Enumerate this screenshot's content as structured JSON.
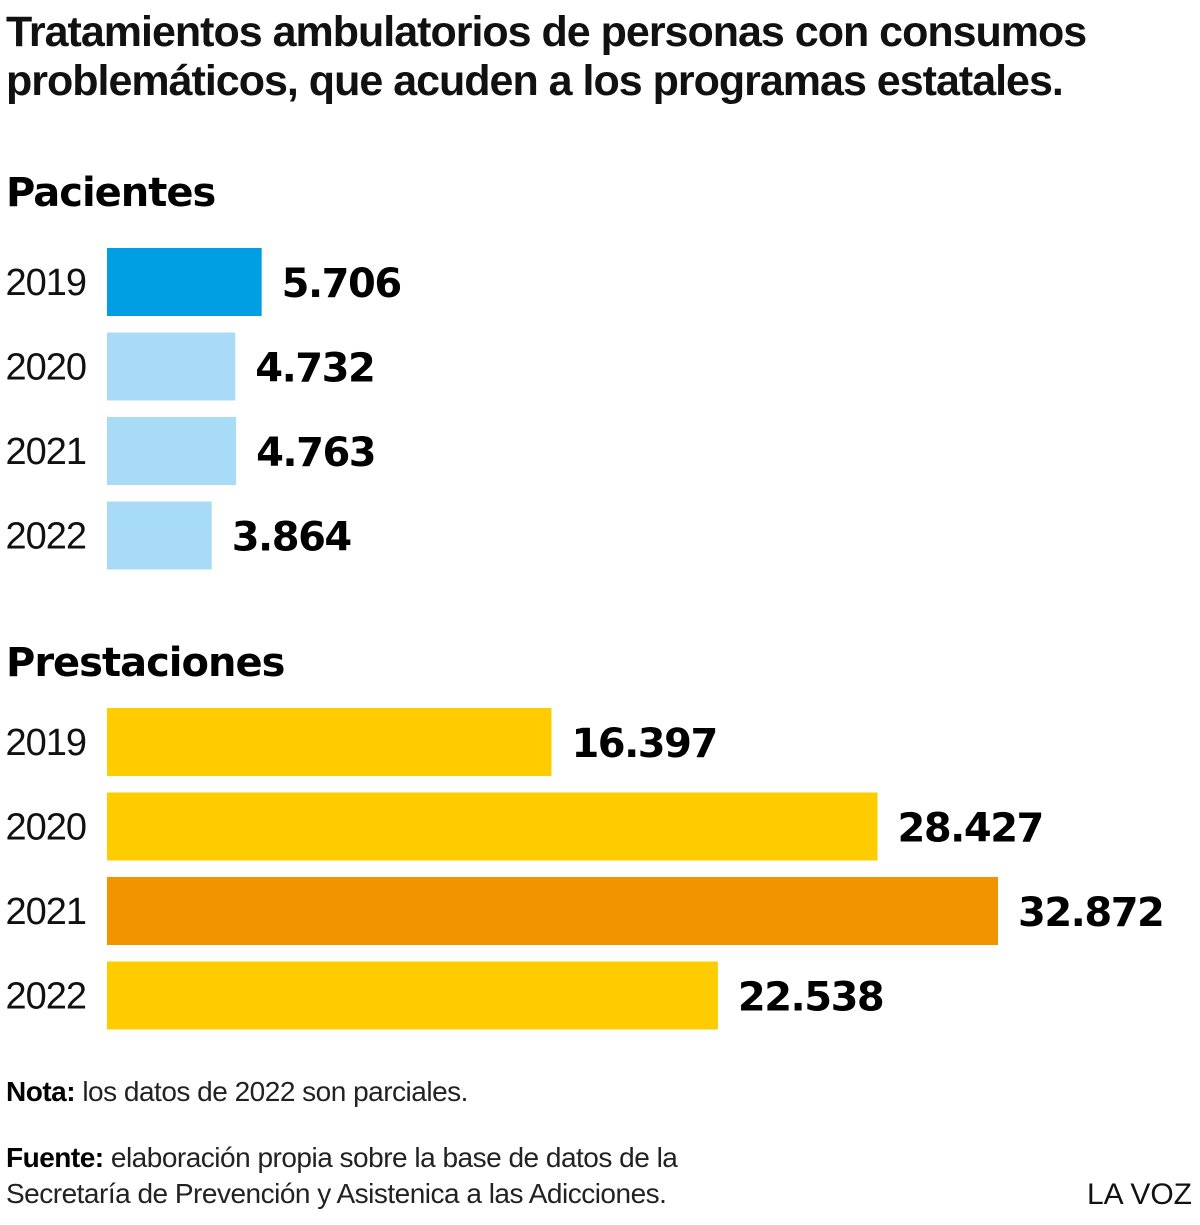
{
  "title": "Tratamientos ambulatorios de personas con consumos problemáticos, que acuden a los programas estatales.",
  "chart_data": [
    {
      "type": "bar",
      "orientation": "horizontal",
      "title": "Pacientes",
      "categories": [
        "2019",
        "2020",
        "2021",
        "2022"
      ],
      "values": [
        5706,
        4732,
        4763,
        3864
      ],
      "value_labels": [
        "5.706",
        "4.732",
        "4.763",
        "3.864"
      ],
      "colors": [
        "#009fe3",
        "#a8dcf6",
        "#a8dcf6",
        "#a8dcf6"
      ]
    },
    {
      "type": "bar",
      "orientation": "horizontal",
      "title": "Prestaciones",
      "categories": [
        "2019",
        "2020",
        "2021",
        "2022"
      ],
      "values": [
        16397,
        28427,
        32872,
        22538
      ],
      "value_labels": [
        "16.397",
        "28.427",
        "32.872",
        "22.538"
      ],
      "colors": [
        "#ffcc00",
        "#ffcc00",
        "#f29400",
        "#ffcc00"
      ]
    }
  ],
  "notes": {
    "nota_label": "Nota:",
    "nota_text": " los datos de 2022 son parciales.",
    "fuente_label": "Fuente:",
    "fuente_text": " elaboración propia sobre la base de datos de la Secretaría de Prevención y Asistenica a las Adicciones."
  },
  "brand": "LA VOZ"
}
